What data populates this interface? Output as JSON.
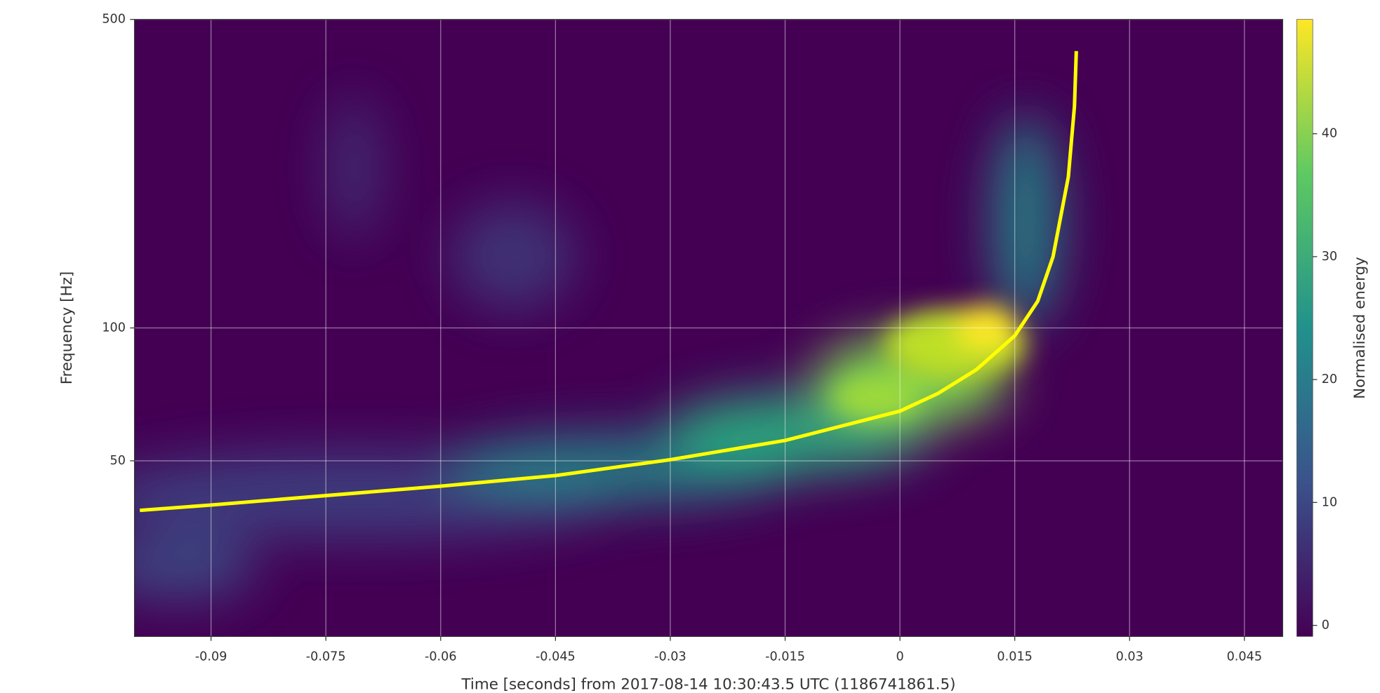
{
  "chart_data": {
    "type": "line",
    "x_label": "Time [seconds] from 2017-08-14 10:30:43.5 UTC (1186741861.5)",
    "y_label": "Frequency [Hz]",
    "x": [
      -0.0993,
      -0.09,
      -0.06,
      -0.045,
      -0.03,
      -0.015,
      0,
      0.005,
      0.01,
      0.015,
      0.018,
      0.02,
      0.022,
      0.0228,
      0.02304
    ],
    "series": [
      {
        "color": "#ffff00",
        "values": [
          38.6,
          39.7,
          43.8,
          46.3,
          50.3,
          55.6,
          64.8,
          71.1,
          80.5,
          96,
          115,
          145,
          220,
          318,
          424
        ]
      }
    ],
    "xlim": [
      -0.1,
      0.05
    ],
    "xticks": [
      -0.09,
      -0.075,
      -0.06,
      -0.045,
      -0.03,
      -0.015,
      0,
      0.015,
      0.03,
      0.045
    ],
    "ylim": [
      20,
      500
    ],
    "log_y": true,
    "yticks": [
      50,
      100,
      500
    ],
    "grid": true,
    "colorbar": {
      "label": "Normalised energy",
      "lim": [
        -0.9,
        49.3
      ],
      "ticks": [
        0,
        10,
        20,
        30,
        40
      ]
    }
  }
}
